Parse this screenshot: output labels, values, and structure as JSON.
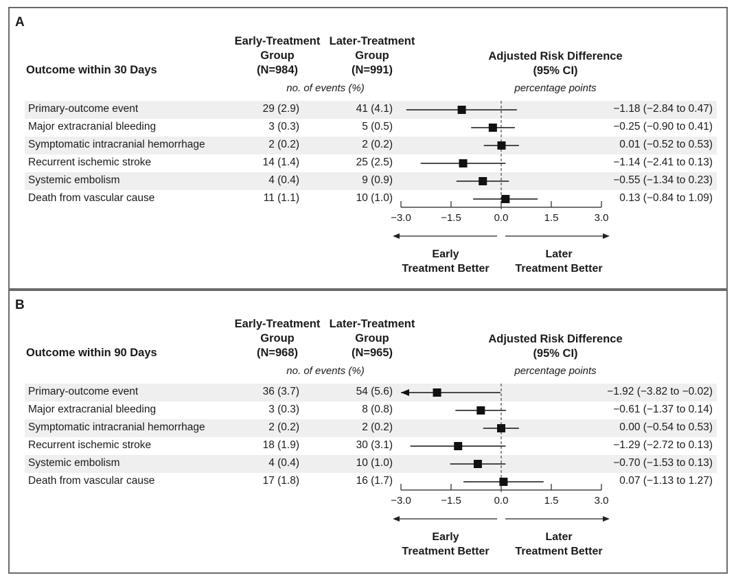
{
  "panels": [
    {
      "letter": "A",
      "outcome_header": "Outcome within 30 Days",
      "early_header": [
        "Early-Treatment",
        "Group",
        "(N=984)"
      ],
      "later_header": [
        "Later-Treatment",
        "Group",
        "(N=991)"
      ],
      "events_subheader": "no. of events (%)",
      "ci_header": [
        "Adjusted Risk Difference",
        "(95% CI)"
      ],
      "ci_subheader": "percentage points",
      "axis_left_label": [
        "Early",
        "Treatment Better"
      ],
      "axis_right_label": [
        "Later",
        "Treatment Better"
      ]
    },
    {
      "letter": "B",
      "outcome_header": "Outcome within 90 Days",
      "early_header": [
        "Early-Treatment",
        "Group",
        "(N=968)"
      ],
      "later_header": [
        "Later-Treatment",
        "Group",
        "(N=965)"
      ],
      "events_subheader": "no. of events (%)",
      "ci_header": [
        "Adjusted Risk Difference",
        "(95% CI)"
      ],
      "ci_subheader": "percentage points",
      "axis_left_label": [
        "Early",
        "Treatment Better"
      ],
      "axis_right_label": [
        "Later",
        "Treatment Better"
      ]
    }
  ],
  "chart_data": [
    {
      "type": "forest",
      "xlim": [
        -3.0,
        3.0
      ],
      "xticks": [
        "−3.0",
        "−1.5",
        "0.0",
        "1.5",
        "3.0"
      ],
      "xtick_values": [
        -3.0,
        -1.5,
        0.0,
        1.5,
        3.0
      ],
      "rows": [
        {
          "label": "Primary-outcome event",
          "early": "29 (2.9)",
          "later": "41 (4.1)",
          "ci_text": "−1.18 (−2.84 to 0.47)",
          "est": -1.18,
          "lo": -2.84,
          "hi": 0.47
        },
        {
          "label": "Major extracranial bleeding",
          "early": "3 (0.3)",
          "later": "5 (0.5)",
          "ci_text": "−0.25 (−0.90 to 0.41)",
          "est": -0.25,
          "lo": -0.9,
          "hi": 0.41
        },
        {
          "label": "Symptomatic intracranial hemorrhage",
          "early": "2 (0.2)",
          "later": "2 (0.2)",
          "ci_text": "0.01 (−0.52 to 0.53)",
          "est": 0.01,
          "lo": -0.52,
          "hi": 0.53
        },
        {
          "label": "Recurrent ischemic stroke",
          "early": "14 (1.4)",
          "later": "25 (2.5)",
          "ci_text": "−1.14 (−2.41 to 0.13)",
          "est": -1.14,
          "lo": -2.41,
          "hi": 0.13
        },
        {
          "label": "Systemic embolism",
          "early": "4 (0.4)",
          "later": "9 (0.9)",
          "ci_text": "−0.55 (−1.34 to 0.23)",
          "est": -0.55,
          "lo": -1.34,
          "hi": 0.23
        },
        {
          "label": "Death from vascular cause",
          "early": "11 (1.1)",
          "later": "10 (1.0)",
          "ci_text": "0.13 (−0.84 to 1.09)",
          "est": 0.13,
          "lo": -0.84,
          "hi": 1.09
        }
      ]
    },
    {
      "type": "forest",
      "xlim": [
        -3.0,
        3.0
      ],
      "xticks": [
        "−3.0",
        "−1.5",
        "0.0",
        "1.5",
        "3.0"
      ],
      "xtick_values": [
        -3.0,
        -1.5,
        0.0,
        1.5,
        3.0
      ],
      "rows": [
        {
          "label": "Primary-outcome event",
          "early": "36 (3.7)",
          "later": "54 (5.6)",
          "ci_text": "−1.92 (−3.82 to −0.02)",
          "est": -1.92,
          "lo": -3.82,
          "hi": -0.02
        },
        {
          "label": "Major extracranial bleeding",
          "early": "3 (0.3)",
          "later": "8 (0.8)",
          "ci_text": "−0.61 (−1.37 to 0.14)",
          "est": -0.61,
          "lo": -1.37,
          "hi": 0.14
        },
        {
          "label": "Symptomatic intracranial hemorrhage",
          "early": "2 (0.2)",
          "later": "2 (0.2)",
          "ci_text": "0.00 (−0.54 to 0.53)",
          "est": 0.0,
          "lo": -0.54,
          "hi": 0.53
        },
        {
          "label": "Recurrent ischemic stroke",
          "early": "18 (1.9)",
          "later": "30 (3.1)",
          "ci_text": "−1.29 (−2.72 to 0.13)",
          "est": -1.29,
          "lo": -2.72,
          "hi": 0.13
        },
        {
          "label": "Systemic embolism",
          "early": "4 (0.4)",
          "later": "10 (1.0)",
          "ci_text": "−0.70 (−1.53 to 0.13)",
          "est": -0.7,
          "lo": -1.53,
          "hi": 0.13
        },
        {
          "label": "Death from vascular cause",
          "early": "17 (1.8)",
          "later": "16 (1.7)",
          "ci_text": "0.07 (−1.13 to 1.27)",
          "est": 0.07,
          "lo": -1.13,
          "hi": 1.27
        }
      ]
    }
  ]
}
